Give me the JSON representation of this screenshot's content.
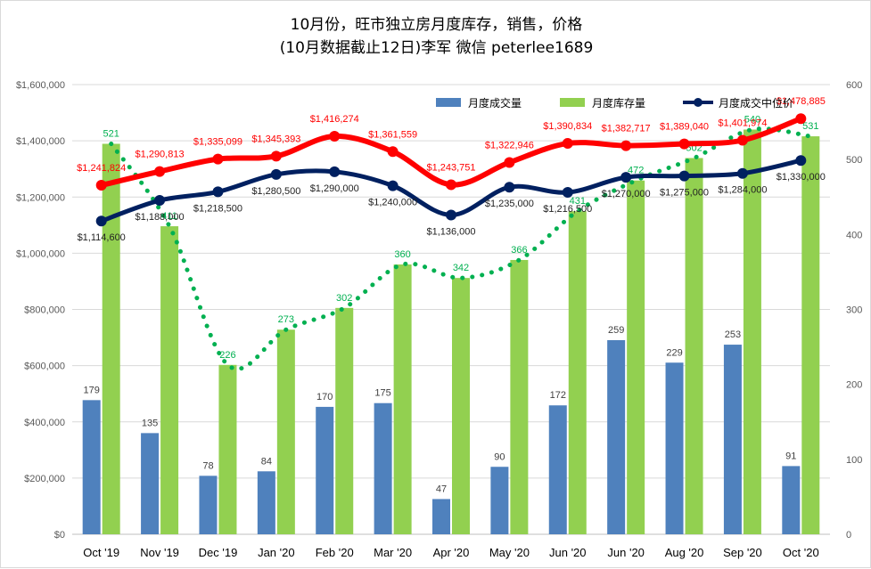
{
  "chart_data": {
    "type": "bar",
    "title": "10月份，旺市独立房月度库存，销售，价格",
    "subtitle": "(10月数据截止12日)李军 微信 peterlee1689",
    "categories": [
      "Oct '19",
      "Nov '19",
      "Dec '19",
      "Jan '20",
      "Feb '20",
      "Mar '20",
      "Apr '20",
      "May '20",
      "Jun '20",
      "Jun '20",
      "Aug '20",
      "Sep '20",
      "Oct '20"
    ],
    "left_axis": {
      "min": 0,
      "max": 1600000,
      "ticks": [
        "$0",
        "$200,000",
        "$400,000",
        "$600,000",
        "$800,000",
        "$1,000,000",
        "$1,200,000",
        "$1,400,000",
        "$1,600,000"
      ]
    },
    "right_axis": {
      "min": 0,
      "max": 600,
      "ticks": [
        "0",
        "100",
        "200",
        "300",
        "400",
        "500",
        "600"
      ]
    },
    "gridlines": true,
    "legend_position": "top-right",
    "series": [
      {
        "name": "月度成交量",
        "kind": "bar",
        "axis": "right",
        "color": "#4f81bd",
        "values": [
          179,
          135,
          78,
          84,
          170,
          175,
          47,
          90,
          172,
          259,
          229,
          253,
          91
        ],
        "labels": [
          "179",
          "135",
          "78",
          "84",
          "170",
          "175",
          "47",
          "90",
          "172",
          "259",
          "229",
          "253",
          "91"
        ]
      },
      {
        "name": "月度库存量",
        "kind": "bar",
        "axis": "right",
        "color": "#92d050",
        "values": [
          521,
          411,
          226,
          273,
          302,
          360,
          342,
          366,
          431,
          472,
          502,
          540,
          531
        ],
        "labels": [
          "521",
          "411",
          "226",
          "273",
          "302",
          "360",
          "342",
          "366",
          "431",
          "472",
          "502",
          "540",
          "531"
        ]
      },
      {
        "name": "月度成交中位价",
        "kind": "line",
        "axis": "left",
        "color": "#002060",
        "values": [
          1114600,
          1188000,
          1218500,
          1280500,
          1290000,
          1240000,
          1136000,
          1235000,
          1216500,
          1270000,
          1275000,
          1284000,
          1330000
        ],
        "labels": [
          "$1,114,600",
          "$1,188,000",
          "$1,218,500",
          "$1,280,500",
          "$1,290,000",
          "$1,240,000",
          "$1,136,000",
          "$1,235,000",
          "$1,216,500",
          "$1,270,000",
          "$1,275,000",
          "$1,284,000",
          "$1,330,000"
        ]
      },
      {
        "name": "",
        "kind": "line",
        "axis": "left",
        "color": "#ff0000",
        "values": [
          1241824,
          1290813,
          1335099,
          1345393,
          1416274,
          1361559,
          1243751,
          1322946,
          1390834,
          1382717,
          1389040,
          1401974,
          1478885
        ],
        "labels": [
          "$1,241,824",
          "$1,290,813",
          "$1,335,099",
          "$1,345,393",
          "$1,416,274",
          "$1,361,559",
          "$1,243,751",
          "$1,322,946",
          "$1,390,834",
          "$1,382,717",
          "$1,389,040",
          "$1,401,974",
          "$1,478,885"
        ]
      }
    ],
    "trendline": {
      "color": "#00b050",
      "style": "dotted"
    }
  }
}
